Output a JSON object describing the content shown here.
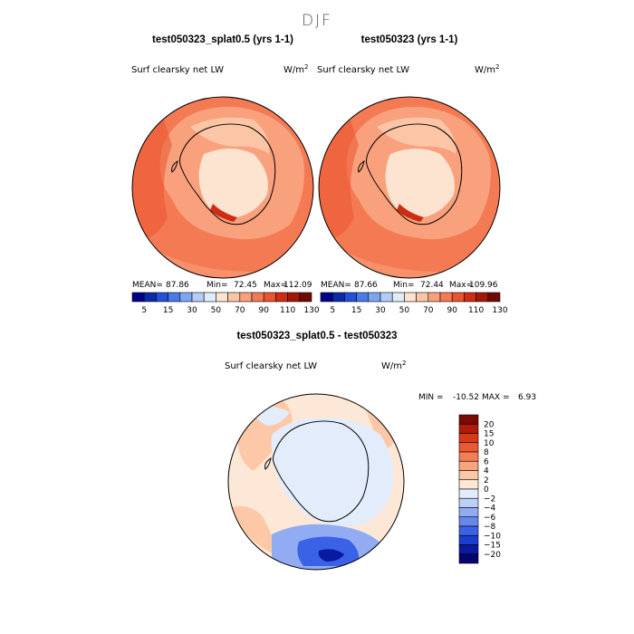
{
  "figure": {
    "title": "DJF"
  },
  "colors": {
    "abs_scale": [
      "#00008b",
      "#0a2aa8",
      "#2250d8",
      "#4a7ae8",
      "#7ea6f0",
      "#b4ccf6",
      "#e0ecfb",
      "#fde4d0",
      "#fcc5a6",
      "#f9a07c",
      "#f47a54",
      "#ea5430",
      "#cf2c14",
      "#a41808",
      "#6e0a02"
    ],
    "diff_scale": [
      "#050570",
      "#0a1aa0",
      "#1a3ecf",
      "#3a62e6",
      "#6688ee",
      "#92acf3",
      "#bcd0f7",
      "#e2ecfb",
      "#fde8d8",
      "#fcc8a8",
      "#f9a37c",
      "#f47d55",
      "#ea5a32",
      "#d83a18",
      "#b01a08",
      "#7a0a02"
    ],
    "coastline": "#000000"
  },
  "chart_data": [
    {
      "type": "heatmap",
      "projection": "south-polar-stereographic",
      "panel_title": "test050323_splat0.5 (yrs 1-1)",
      "variable": "Surf clearsky net LW",
      "units_label": "W/m",
      "units_exp": "2",
      "stats": {
        "mean_label": "MEAN=",
        "mean": "87.86",
        "min_label": "Min=",
        "min": "72.45",
        "max_label": "Max=",
        "max": "112.09"
      },
      "colorbar_ticks": [
        "5",
        "15",
        "30",
        "50",
        "70",
        "90",
        "110",
        "130"
      ]
    },
    {
      "type": "heatmap",
      "projection": "south-polar-stereographic",
      "panel_title": "test050323 (yrs 1-1)",
      "variable": "Surf clearsky net LW",
      "units_label": "W/m",
      "units_exp": "2",
      "stats": {
        "mean_label": "MEAN=",
        "mean": "87.66",
        "min_label": "Min=",
        "min": "72.44",
        "max_label": "Max=",
        "max": "109.96"
      },
      "colorbar_ticks": [
        "5",
        "15",
        "30",
        "50",
        "70",
        "90",
        "110",
        "130"
      ]
    },
    {
      "type": "heatmap",
      "projection": "south-polar-stereographic",
      "panel_title": "test050323_splat0.5 - test050323",
      "variable": "Surf clearsky net LW",
      "units_label": "W/m",
      "units_exp": "2",
      "stats": {
        "min_label": "MIN =",
        "min": "-10.52",
        "max_label": "MAX =",
        "max": "6.93"
      },
      "colorbar_ticks": [
        "20",
        "15",
        "10",
        "8",
        "6",
        "4",
        "2",
        "0",
        "−2",
        "−4",
        "−6",
        "−8",
        "−10",
        "−15",
        "−20"
      ]
    }
  ]
}
